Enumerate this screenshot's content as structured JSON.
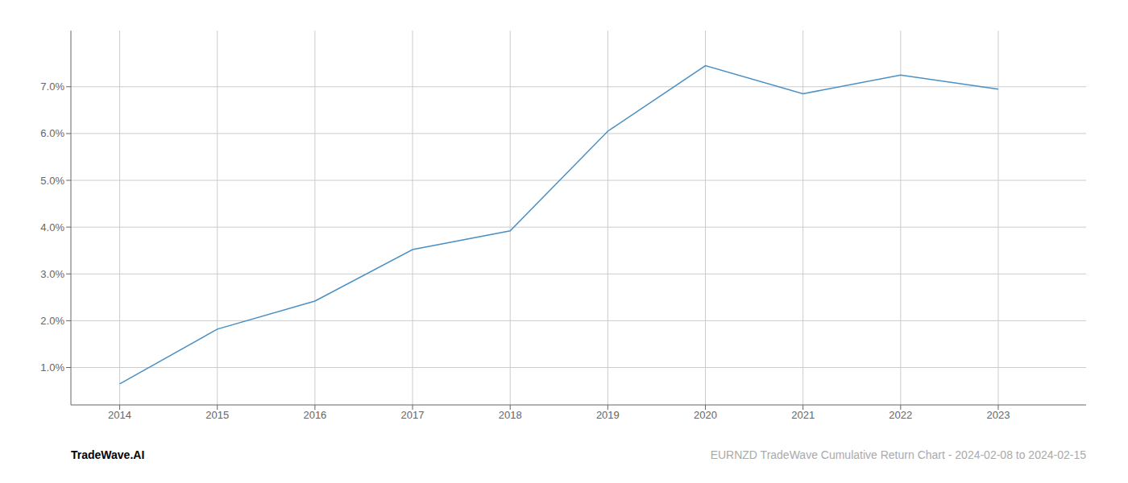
{
  "chart_data": {
    "type": "line",
    "x": [
      2014,
      2015,
      2016,
      2017,
      2018,
      2019,
      2020,
      2021,
      2022,
      2023
    ],
    "values": [
      0.65,
      1.82,
      2.42,
      3.52,
      3.92,
      6.05,
      7.45,
      6.85,
      7.25,
      6.95
    ],
    "color": "#4a90c4",
    "xlim": [
      2013.5,
      2023.9
    ],
    "xticks": [
      2014,
      2015,
      2016,
      2017,
      2018,
      2019,
      2020,
      2021,
      2022,
      2023
    ],
    "ylim": [
      0.2,
      8.2
    ],
    "yticks": [
      {
        "value": 1.0,
        "label": "1.0%"
      },
      {
        "value": 2.0,
        "label": "2.0%"
      },
      {
        "value": 3.0,
        "label": "3.0%"
      },
      {
        "value": 4.0,
        "label": "4.0%"
      },
      {
        "value": 5.0,
        "label": "5.0%"
      },
      {
        "value": 6.0,
        "label": "6.0%"
      },
      {
        "value": 7.0,
        "label": "7.0%"
      }
    ],
    "grid": true,
    "annotations": [
      {
        "text": "TradeWave.AI",
        "color": "#000000"
      },
      {
        "text": "EURNZD TradeWave Cumulative Return Chart - 2024-02-08 to 2024-02-15",
        "color": "#aaaaaa"
      }
    ]
  }
}
